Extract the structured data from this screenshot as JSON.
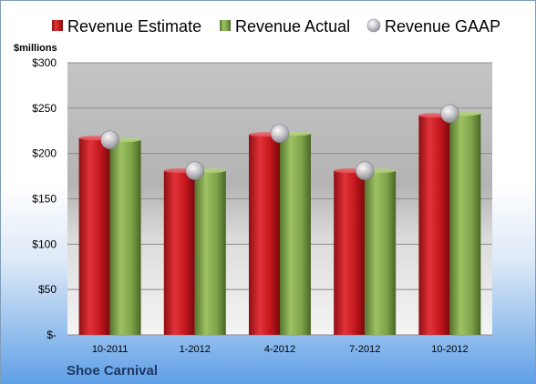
{
  "chart_data": {
    "type": "bar",
    "unit_label": "$millions",
    "company": "Shoe Carnival",
    "categories": [
      "10-2011",
      "1-2012",
      "4-2012",
      "7-2012",
      "10-2012"
    ],
    "series": [
      {
        "name": "Revenue Estimate",
        "type": "bar",
        "color": "#c0161c",
        "values": [
          217,
          181,
          221,
          181,
          242
        ]
      },
      {
        "name": "Revenue Actual",
        "type": "bar",
        "color": "#7ea34a",
        "values": [
          215,
          181,
          222,
          181,
          244
        ]
      },
      {
        "name": "Revenue GAAP",
        "type": "marker",
        "color": "#b8b8c0",
        "values": [
          215,
          181,
          222,
          181,
          244
        ]
      }
    ],
    "y_ticks": [
      {
        "value": 0,
        "label": "$-"
      },
      {
        "value": 50,
        "label": "$50"
      },
      {
        "value": 100,
        "label": "$100"
      },
      {
        "value": 150,
        "label": "$150"
      },
      {
        "value": 200,
        "label": "$200"
      },
      {
        "value": 250,
        "label": "$250"
      },
      {
        "value": 300,
        "label": "$300"
      }
    ],
    "ylim": [
      0,
      300
    ],
    "grid": true,
    "legend_position": "top"
  }
}
